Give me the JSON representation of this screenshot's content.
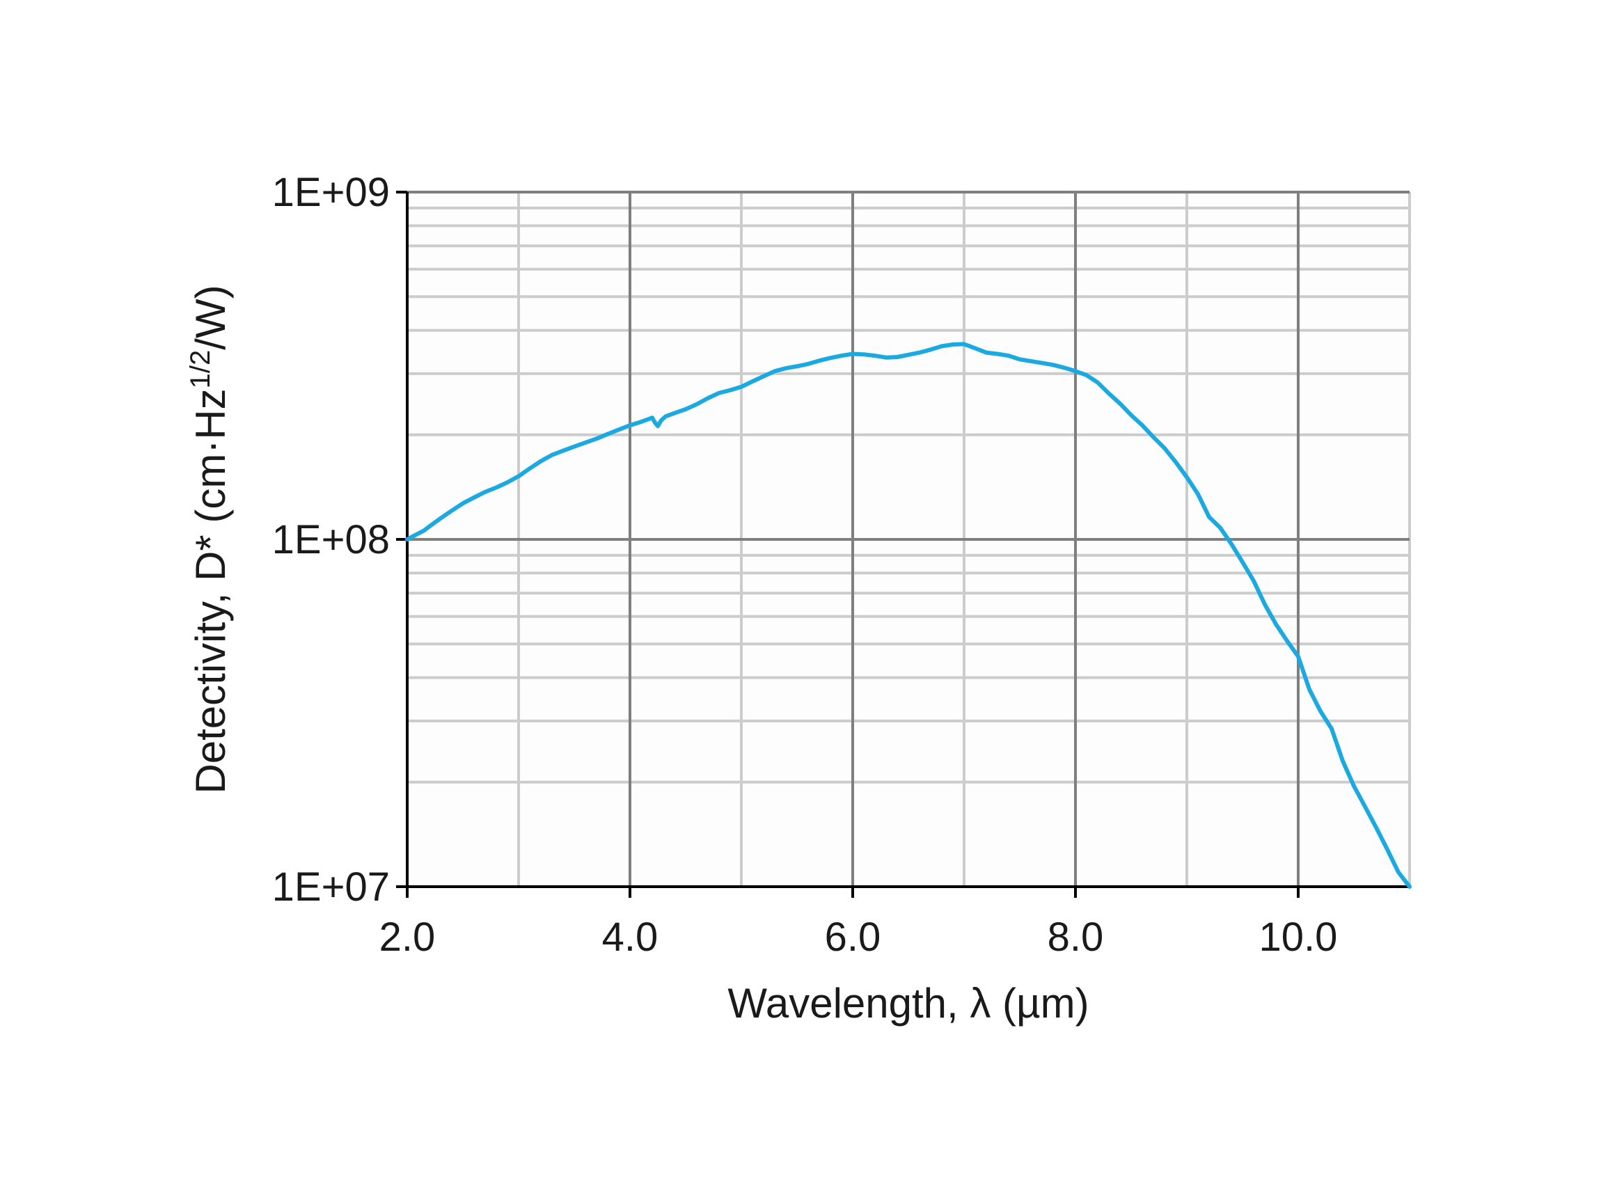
{
  "chart_data": {
    "type": "line",
    "xlabel": "Wavelength, λ (µm)",
    "ylabel": {
      "prefix": "Detectivity, D* (cm·Hz",
      "superscript": "1/2",
      "suffix": "/W)"
    },
    "xlim": [
      2.0,
      11.0
    ],
    "ylim": [
      10000000,
      1000000000
    ],
    "yscale": "log",
    "grid": true,
    "x_ticks": [
      2.0,
      4.0,
      6.0,
      8.0,
      10.0
    ],
    "x_tick_labels": [
      "2.0",
      "4.0",
      "6.0",
      "8.0",
      "10.0"
    ],
    "y_ticks": [
      10000000,
      100000000,
      1000000000
    ],
    "y_tick_labels": [
      "1E+07",
      "1E+08",
      "1E+09"
    ],
    "series_color": "#1ba9e1",
    "series": [
      {
        "x": [
          2.0,
          2.05,
          2.1,
          2.15,
          2.2,
          2.3,
          2.4,
          2.5,
          2.6,
          2.7,
          2.8,
          2.9,
          3.0,
          3.1,
          3.2,
          3.3,
          3.4,
          3.5,
          3.6,
          3.7,
          3.8,
          3.9,
          4.0,
          4.1,
          4.2,
          4.22,
          4.25,
          4.28,
          4.32,
          4.4,
          4.5,
          4.6,
          4.7,
          4.8,
          4.9,
          5.0,
          5.1,
          5.2,
          5.3,
          5.4,
          5.5,
          5.6,
          5.7,
          5.8,
          5.9,
          6.0,
          6.1,
          6.2,
          6.3,
          6.4,
          6.5,
          6.6,
          6.7,
          6.8,
          6.9,
          7.0,
          7.1,
          7.2,
          7.3,
          7.4,
          7.5,
          7.6,
          7.7,
          7.8,
          7.9,
          8.0,
          8.1,
          8.2,
          8.3,
          8.4,
          8.5,
          8.6,
          8.7,
          8.8,
          8.9,
          9.0,
          9.1,
          9.2,
          9.3,
          9.4,
          9.5,
          9.6,
          9.7,
          9.8,
          9.9,
          10.0,
          10.1,
          10.2,
          10.3,
          10.4,
          10.5,
          10.6,
          10.7,
          10.8,
          10.9,
          11.0
        ],
        "y": [
          100000000,
          102000000,
          104000000,
          106000000,
          109000000,
          115000000,
          121000000,
          127000000,
          132000000,
          137000000,
          141000000,
          146000000,
          152000000,
          160000000,
          168000000,
          175000000,
          180000000,
          185000000,
          190000000,
          195000000,
          201000000,
          207000000,
          213000000,
          218000000,
          224000000,
          218000000,
          212000000,
          220000000,
          226000000,
          231000000,
          237000000,
          245000000,
          255000000,
          264000000,
          269000000,
          275000000,
          285000000,
          295000000,
          305000000,
          311000000,
          315000000,
          320000000,
          327000000,
          333000000,
          338000000,
          342000000,
          341000000,
          338000000,
          334000000,
          335000000,
          340000000,
          345000000,
          352000000,
          360000000,
          364000000,
          365000000,
          355000000,
          345000000,
          342000000,
          338000000,
          330000000,
          326000000,
          322000000,
          318000000,
          312000000,
          305000000,
          297000000,
          283000000,
          263000000,
          246000000,
          228000000,
          213000000,
          197000000,
          183000000,
          167000000,
          151000000,
          135000000,
          116000000,
          108000000,
          97000000,
          86000000,
          76000000,
          65000000,
          57000000,
          51000000,
          46000000,
          37000000,
          32000000,
          28500000,
          23000000,
          19500000,
          17000000,
          14800000,
          12800000,
          11000000,
          9600000
        ]
      }
    ]
  }
}
